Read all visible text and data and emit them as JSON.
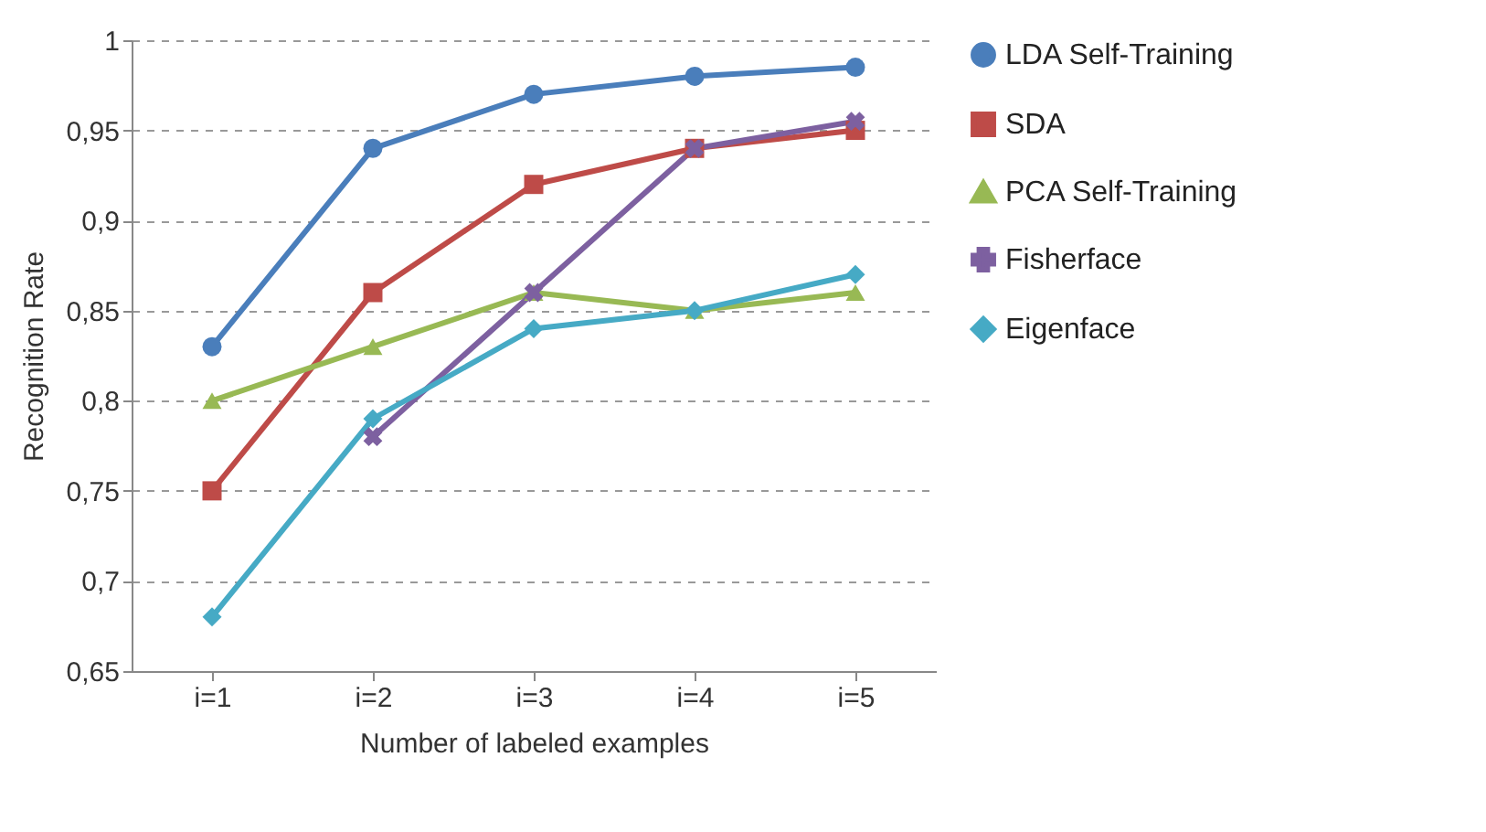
{
  "chart_data": {
    "type": "line",
    "xlabel": "Number of labeled examples",
    "ylabel": "Recognition Rate",
    "categories": [
      "i=1",
      "i=2",
      "i=3",
      "i=4",
      "i=5"
    ],
    "series": [
      {
        "name": "LDA Self-Training",
        "color": "#4a7ebb",
        "marker": "circle",
        "values": [
          0.83,
          0.94,
          0.97,
          0.98,
          0.985
        ]
      },
      {
        "name": "SDA",
        "color": "#be4b48",
        "marker": "square",
        "values": [
          0.75,
          0.86,
          0.92,
          0.94,
          0.95
        ]
      },
      {
        "name": "PCA Self-Training",
        "color": "#98b954",
        "marker": "triangle",
        "values": [
          0.8,
          0.83,
          0.86,
          0.85,
          0.86
        ]
      },
      {
        "name": "Fisherface",
        "color": "#7d60a0",
        "marker": "cross",
        "values": [
          null,
          0.78,
          0.86,
          0.94,
          0.955
        ]
      },
      {
        "name": "Eigenface",
        "color": "#46aac5",
        "marker": "diamond",
        "values": [
          0.68,
          0.79,
          0.84,
          0.85,
          0.87
        ]
      }
    ],
    "ylim": [
      0.65,
      1
    ],
    "yticks": [
      {
        "value": 0.65,
        "label": "0,65"
      },
      {
        "value": 0.7,
        "label": "0,7"
      },
      {
        "value": 0.75,
        "label": "0,75"
      },
      {
        "value": 0.8,
        "label": "0,8"
      },
      {
        "value": 0.85,
        "label": "0,85"
      },
      {
        "value": 0.9,
        "label": "0,9"
      },
      {
        "value": 0.95,
        "label": "0,95"
      },
      {
        "value": 1,
        "label": "1"
      }
    ],
    "grid": "y",
    "legend": "right",
    "line_style": "solid"
  }
}
